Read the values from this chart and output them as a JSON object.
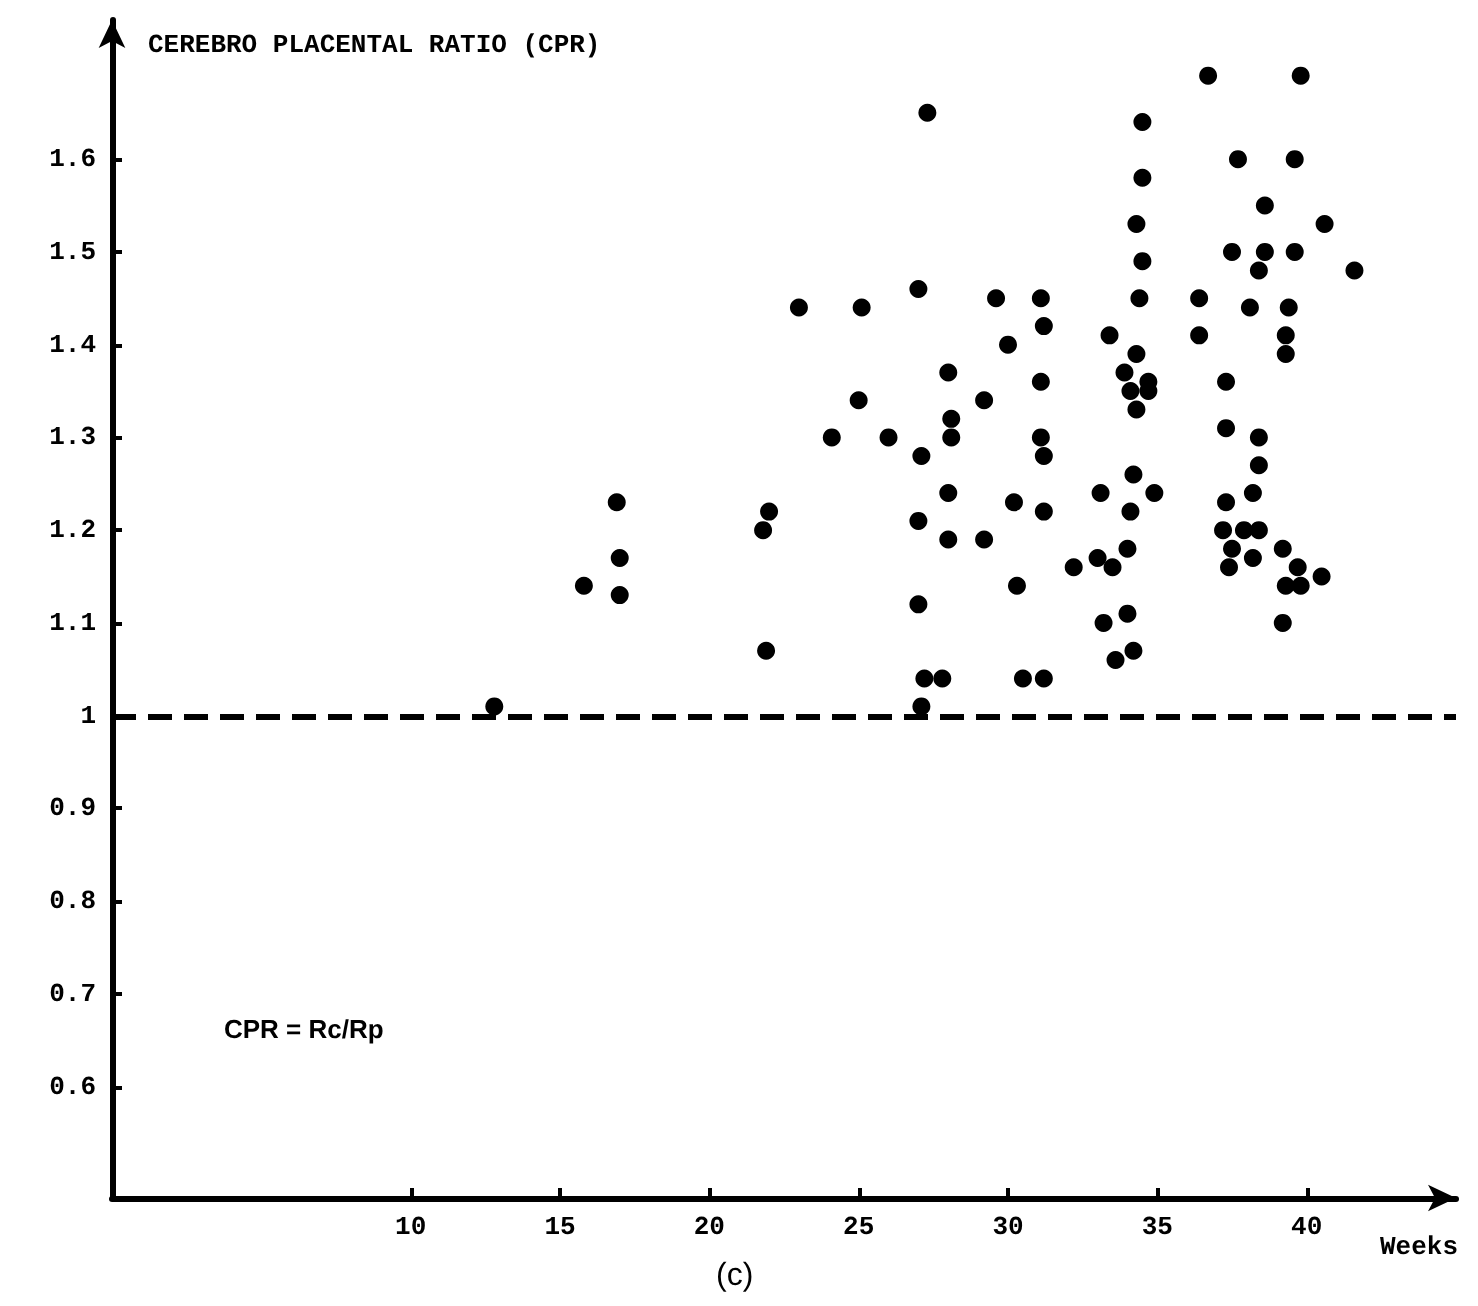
{
  "chart_data": {
    "type": "scatter",
    "ylabel": "CEREBRO PLACENTAL RATIO (CPR)",
    "xlabel": "Weeks",
    "annotations": [
      "CPR = Rc/Rp",
      "(c)"
    ],
    "xlim": [
      0,
      45
    ],
    "xticks": [
      10,
      15,
      20,
      25,
      30,
      35,
      40
    ],
    "ylim": [
      0.48,
      1.75
    ],
    "yticks": [
      0.6,
      0.7,
      0.8,
      0.9,
      1,
      1.1,
      1.2,
      1.3,
      1.4,
      1.5,
      1.6
    ],
    "grid": false,
    "marker": "circle",
    "ref_lines": [
      {
        "axis": "y",
        "value": 1,
        "line_style": "dashed",
        "color": "#000000"
      }
    ],
    "series": [
      {
        "color": "#000000",
        "x": [
          12.8,
          16.9,
          17.0,
          15.8,
          17.0,
          27.3,
          27.0,
          23.0,
          25.1,
          29.6,
          30.0,
          28.0,
          25.0,
          29.2,
          28.1,
          24.1,
          26.0,
          28.1,
          27.1,
          28.0,
          22.0,
          21.8,
          27.0,
          28.0,
          29.2,
          27.0,
          21.9,
          27.2,
          27.8,
          27.1,
          34.5,
          34.5,
          34.3,
          34.5,
          34.4,
          31.1,
          31.2,
          33.4,
          34.3,
          33.9,
          34.7,
          34.1,
          34.7,
          34.3,
          31.1,
          31.1,
          31.2,
          34.2,
          33.1,
          34.9,
          30.2,
          31.2,
          34.1,
          34.0,
          33.0,
          33.5,
          32.2,
          30.3,
          33.2,
          34.0,
          33.6,
          34.2,
          30.5,
          31.2,
          36.7,
          39.8,
          37.7,
          39.6,
          38.6,
          40.6,
          37.5,
          38.6,
          39.6,
          38.4,
          41.6,
          36.4,
          38.1,
          39.4,
          36.4,
          39.3,
          39.3,
          37.3,
          37.3,
          38.4,
          38.4,
          38.2,
          37.3,
          37.2,
          37.9,
          38.4,
          37.5,
          37.4,
          38.2,
          39.2,
          39.7,
          39.3,
          39.8,
          40.5,
          39.2
        ],
        "values": [
          1.01,
          1.23,
          1.17,
          1.14,
          1.13,
          1.65,
          1.46,
          1.44,
          1.44,
          1.45,
          1.4,
          1.37,
          1.34,
          1.34,
          1.32,
          1.3,
          1.3,
          1.3,
          1.28,
          1.24,
          1.22,
          1.2,
          1.21,
          1.19,
          1.19,
          1.12,
          1.07,
          1.04,
          1.04,
          1.01,
          1.64,
          1.58,
          1.53,
          1.49,
          1.45,
          1.45,
          1.42,
          1.41,
          1.39,
          1.37,
          1.36,
          1.35,
          1.35,
          1.33,
          1.36,
          1.3,
          1.28,
          1.26,
          1.24,
          1.24,
          1.23,
          1.22,
          1.22,
          1.18,
          1.17,
          1.16,
          1.16,
          1.14,
          1.1,
          1.11,
          1.06,
          1.07,
          1.04,
          1.04,
          1.69,
          1.69,
          1.6,
          1.6,
          1.55,
          1.53,
          1.5,
          1.5,
          1.5,
          1.48,
          1.48,
          1.45,
          1.44,
          1.44,
          1.41,
          1.41,
          1.39,
          1.36,
          1.31,
          1.3,
          1.27,
          1.24,
          1.23,
          1.2,
          1.2,
          1.2,
          1.18,
          1.16,
          1.17,
          1.18,
          1.16,
          1.14,
          1.14,
          1.15,
          1.1
        ]
      }
    ]
  }
}
